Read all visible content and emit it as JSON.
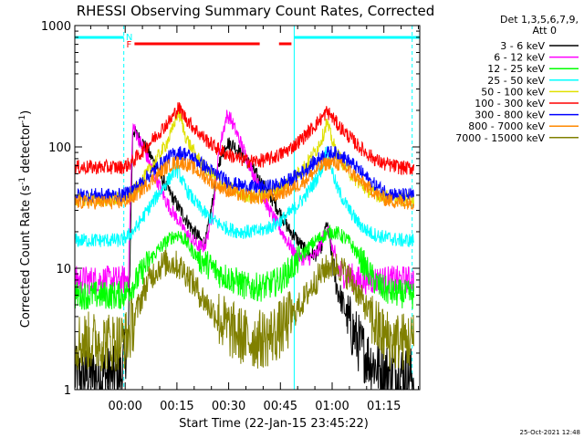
{
  "chart_data": {
    "type": "line",
    "title": "RHESSI Observing Summary Count Rates, Corrected",
    "xlabel": "Start Time (22-Jan-15 23:45:22)",
    "ylabel_main": "Corrected Count Rate (s",
    "ylabel_sup1": "-1",
    "ylabel_mid": " detector",
    "ylabel_sup2": "-1",
    "ylabel_end": ")",
    "yscale": "log",
    "ylim": [
      1,
      1000
    ],
    "xlim_minutes": [
      0,
      100
    ],
    "x_ticks": [
      {
        "m": 14.6,
        "label": "00:00"
      },
      {
        "m": 29.6,
        "label": "00:15"
      },
      {
        "m": 44.6,
        "label": "00:30"
      },
      {
        "m": 59.6,
        "label": "00:45"
      },
      {
        "m": 74.6,
        "label": "01:00"
      },
      {
        "m": 89.6,
        "label": "01:15"
      }
    ],
    "y_ticks": [
      {
        "v": 1,
        "label": "1"
      },
      {
        "v": 10,
        "label": "10"
      },
      {
        "v": 100,
        "label": "100"
      },
      {
        "v": 1000,
        "label": "1000"
      }
    ],
    "legend": {
      "header1": "Det 1,3,5,6,7,9,",
      "header2": "Att 0",
      "placement": "right"
    },
    "flags": [
      {
        "label": "F",
        "color": "#ff0000",
        "segments": [
          [
            17.3,
            53.6
          ],
          [
            59.2,
            62.8
          ]
        ]
      },
      {
        "label": "N",
        "color": "#00ffff",
        "segments": [
          [
            0,
            14.2
          ],
          [
            63.6,
            100
          ]
        ]
      }
    ],
    "night_boundaries": [
      14.2,
      63.6,
      97.8
    ],
    "footer_date": "25-Oct-2021 12:48",
    "series": [
      {
        "name": "3 - 6 keV",
        "color": "#000000",
        "x": [
          0,
          13.5,
          14.8,
          15.5,
          16.8,
          18,
          20,
          22,
          24,
          26,
          28,
          30,
          32,
          34,
          36,
          37,
          38,
          40,
          42,
          44,
          46,
          48,
          50,
          52,
          54,
          56,
          58,
          60,
          62,
          64,
          66,
          68,
          70,
          72,
          73,
          74,
          75,
          76,
          78,
          80,
          82,
          84,
          86,
          88,
          90,
          92,
          94,
          96,
          97.5,
          98.4
        ],
        "y": [
          1.3,
          1.3,
          2.2,
          2.6,
          140,
          125,
          105,
          84,
          65,
          50,
          40,
          32,
          26,
          21,
          18,
          16,
          17,
          36,
          78,
          108,
          104,
          90,
          76,
          63,
          51,
          42,
          34,
          27,
          21,
          18,
          15,
          13,
          13,
          16,
          24,
          16,
          10,
          7,
          4.8,
          3.3,
          2.5,
          2.0,
          1.7,
          1.5,
          1.4,
          1.4,
          1.4,
          1.3,
          1.3,
          1.3
        ]
      },
      {
        "name": "6 - 12 keV",
        "color": "#ff00ff",
        "x": [
          0,
          13.5,
          14.8,
          15.5,
          16.8,
          18,
          20,
          22,
          24,
          26,
          28,
          30,
          32,
          34,
          36,
          37,
          38,
          40,
          42,
          44,
          45,
          46,
          48,
          50,
          52,
          54,
          56,
          58,
          60,
          62,
          64,
          66,
          68,
          70,
          71,
          72,
          73,
          74,
          75,
          76,
          78,
          80,
          82,
          84,
          86,
          88,
          90,
          92,
          94,
          96,
          97.5,
          98.4
        ],
        "y": [
          8,
          8,
          8,
          9,
          150,
          125,
          95,
          70,
          52,
          38,
          30,
          25,
          20,
          17,
          15,
          15,
          16,
          30,
          100,
          180,
          175,
          150,
          110,
          80,
          58,
          42,
          32,
          25,
          20,
          16,
          13,
          12,
          12,
          13,
          15,
          18,
          22,
          19,
          13,
          10,
          9,
          8.5,
          8,
          8,
          8,
          8,
          8,
          8,
          8,
          8,
          8,
          8
        ]
      },
      {
        "name": "12 - 25 keV",
        "color": "#00ff00",
        "x": [
          0,
          13.5,
          14.8,
          16,
          18,
          20,
          22,
          24,
          26,
          28,
          30,
          32,
          34,
          36,
          38,
          40,
          42,
          44,
          46,
          48,
          50,
          52,
          54,
          56,
          58,
          60,
          62,
          64,
          66,
          68,
          70,
          72,
          74,
          76,
          78,
          80,
          82,
          84,
          86,
          88,
          90,
          92,
          94,
          96,
          97.5,
          98.4
        ],
        "y": [
          6,
          6,
          6.3,
          6.8,
          8,
          10,
          12,
          14,
          16,
          18,
          19,
          17,
          14,
          12,
          11,
          10,
          9,
          8.5,
          8,
          7.5,
          7,
          7,
          7,
          7.2,
          7.6,
          8.2,
          9.5,
          11,
          13,
          15,
          17,
          18.5,
          20,
          19.5,
          18,
          16,
          13,
          10.5,
          8.5,
          7.2,
          6.6,
          6.3,
          6.2,
          6.1,
          6,
          6
        ]
      },
      {
        "name": "25 - 50 keV",
        "color": "#00ffff",
        "x": [
          0,
          13.5,
          14.8,
          16,
          18,
          20,
          22,
          24,
          26,
          28,
          29,
          30,
          31,
          32,
          34,
          36,
          38,
          40,
          42,
          44,
          46,
          48,
          50,
          52,
          54,
          56,
          58,
          60,
          62,
          64,
          66,
          68,
          70,
          72,
          73,
          74,
          75,
          76,
          78,
          80,
          82,
          84,
          86,
          88,
          90,
          92,
          94,
          96,
          97.5,
          98.4
        ],
        "y": [
          17,
          17,
          18,
          19,
          22,
          27,
          33,
          40,
          48,
          58,
          65,
          62,
          54,
          46,
          38,
          32,
          28,
          25,
          23,
          21.5,
          20.5,
          20,
          20,
          20,
          20.5,
          21.5,
          23,
          25,
          28,
          32,
          37,
          44,
          54,
          70,
          100,
          75,
          58,
          46,
          36,
          29,
          24,
          21,
          19.5,
          18.5,
          18,
          17.5,
          17,
          17,
          17,
          17
        ]
      },
      {
        "name": "50 - 100 keV",
        "color": "#e0e000",
        "x": [
          0,
          13.5,
          14.8,
          16,
          18,
          20,
          22,
          24,
          26,
          28,
          29,
          30,
          31,
          32,
          34,
          36,
          38,
          40,
          42,
          44,
          46,
          48,
          50,
          52,
          54,
          56,
          58,
          60,
          62,
          64,
          66,
          68,
          70,
          72,
          73,
          74,
          75,
          76,
          78,
          80,
          82,
          84,
          86,
          88,
          90,
          92,
          94,
          96,
          97.5,
          98.4
        ],
        "y": [
          37,
          37,
          38,
          40,
          46,
          55,
          67,
          82,
          100,
          130,
          165,
          195,
          160,
          125,
          95,
          78,
          66,
          58,
          52,
          47,
          44,
          41,
          40,
          39,
          40,
          41,
          44,
          47,
          52,
          58,
          66,
          78,
          95,
          125,
          160,
          130,
          105,
          88,
          72,
          60,
          52,
          46,
          42,
          40,
          39,
          38,
          37,
          37,
          37,
          37
        ]
      },
      {
        "name": "100 - 300 keV",
        "color": "#ff0000",
        "x": [
          0,
          13.5,
          14.8,
          16,
          18,
          20,
          22,
          24,
          26,
          28,
          29,
          30,
          31,
          32,
          34,
          36,
          38,
          40,
          42,
          44,
          46,
          48,
          50,
          52,
          54,
          56,
          58,
          60,
          62,
          64,
          66,
          68,
          70,
          72,
          73,
          74,
          75,
          76,
          78,
          80,
          82,
          84,
          86,
          88,
          90,
          92,
          94,
          96,
          97.5,
          98.4
        ],
        "y": [
          68,
          68,
          70,
          73,
          82,
          95,
          110,
          128,
          148,
          170,
          190,
          210,
          195,
          175,
          150,
          130,
          115,
          103,
          94,
          88,
          83,
          79,
          77,
          76,
          77,
          79,
          83,
          88,
          95,
          105,
          118,
          135,
          155,
          178,
          195,
          185,
          170,
          155,
          135,
          118,
          103,
          92,
          83,
          76,
          72,
          70,
          68,
          67,
          67,
          67
        ]
      },
      {
        "name": "300 - 800 keV",
        "color": "#0000ff",
        "x": [
          0,
          13.5,
          14.8,
          16,
          18,
          20,
          22,
          24,
          26,
          28,
          30,
          32,
          34,
          36,
          38,
          40,
          42,
          44,
          46,
          48,
          50,
          52,
          54,
          56,
          58,
          60,
          62,
          64,
          66,
          68,
          70,
          72,
          74,
          76,
          78,
          80,
          82,
          84,
          86,
          88,
          90,
          92,
          94,
          96,
          97.5,
          98.4
        ],
        "y": [
          40,
          40,
          41,
          43,
          47,
          53,
          60,
          68,
          77,
          85,
          90,
          88,
          82,
          75,
          68,
          62,
          57,
          53,
          50,
          48,
          47,
          46.5,
          46.5,
          47,
          48,
          50,
          53,
          57,
          62,
          69,
          77,
          85,
          90,
          88,
          82,
          74,
          66,
          58,
          51,
          46,
          43,
          41,
          40,
          40,
          40,
          40
        ]
      },
      {
        "name": "800 - 7000 keV",
        "color": "#ff8800",
        "x": [
          0,
          13.5,
          14.8,
          16,
          18,
          20,
          22,
          24,
          26,
          28,
          30,
          32,
          34,
          36,
          38,
          40,
          42,
          44,
          46,
          48,
          50,
          52,
          54,
          56,
          58,
          60,
          62,
          64,
          66,
          68,
          70,
          72,
          74,
          76,
          78,
          80,
          82,
          84,
          86,
          88,
          90,
          92,
          94,
          96,
          97.5,
          98.4
        ],
        "y": [
          35,
          35,
          36,
          37,
          41,
          46,
          52,
          59,
          66,
          72,
          75,
          73,
          68,
          62,
          56,
          51,
          47,
          44,
          42,
          40,
          39,
          38.5,
          38.5,
          39,
          40,
          42,
          44,
          47,
          51,
          57,
          64,
          71,
          75,
          73,
          68,
          62,
          55,
          49,
          44,
          40,
          37,
          36,
          35,
          35,
          35,
          35
        ]
      },
      {
        "name": "7000 - 15000 keV",
        "color": "#808000",
        "x": [
          0,
          13.5,
          14.8,
          16,
          18,
          20,
          22,
          24,
          26,
          28,
          30,
          32,
          34,
          36,
          38,
          40,
          42,
          44,
          46,
          48,
          50,
          52,
          54,
          56,
          58,
          60,
          62,
          64,
          66,
          68,
          70,
          72,
          74,
          76,
          78,
          80,
          82,
          84,
          86,
          88,
          90,
          92,
          94,
          96,
          97.5,
          98.4
        ],
        "y": [
          2.5,
          2.5,
          2.6,
          3.0,
          4.5,
          6.5,
          8.5,
          10,
          11,
          11.2,
          10.5,
          9.3,
          7.8,
          6.3,
          5.2,
          4.4,
          3.8,
          3.3,
          3.0,
          2.8,
          2.6,
          2.6,
          2.6,
          2.7,
          2.9,
          3.2,
          3.7,
          4.4,
          5.3,
          6.6,
          8.0,
          9.5,
          10.5,
          10.5,
          9.5,
          8.0,
          6.4,
          5.0,
          3.9,
          3.1,
          2.7,
          2.5,
          2.5,
          2.5,
          2.5,
          2.5
        ]
      }
    ]
  }
}
